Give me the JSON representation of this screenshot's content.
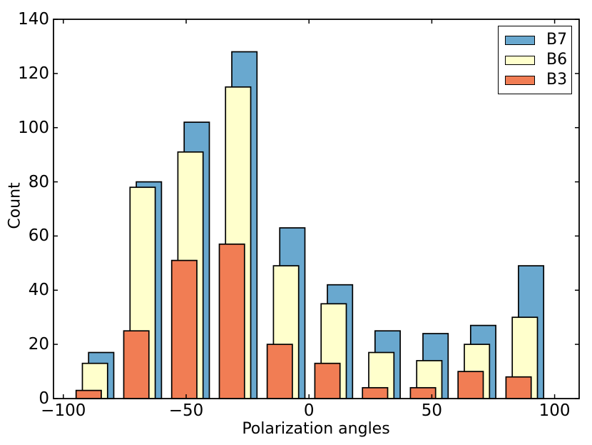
{
  "chart_data": {
    "type": "bar",
    "subtype": "overlapping-histogram",
    "title": "",
    "xlabel": "Polarization angles",
    "ylabel": "Count",
    "xlim": [
      -104,
      110
    ],
    "ylim": [
      0,
      140
    ],
    "grid": false,
    "legend_position": "upper right",
    "x_ticks": [
      -100,
      -50,
      0,
      50,
      100
    ],
    "x_tick_labels": [
      "−100",
      "−50",
      "0",
      "50",
      "100"
    ],
    "y_ticks": [
      0,
      20,
      40,
      60,
      80,
      100,
      120,
      140
    ],
    "y_tick_labels": [
      "0",
      "20",
      "40",
      "60",
      "80",
      "100",
      "120",
      "140"
    ],
    "bin_left_edges": [
      -94.8,
      -75.4,
      -55.9,
      -36.5,
      -17.0,
      2.4,
      21.8,
      41.3,
      60.7,
      80.2
    ],
    "bin_centers": [
      -89.6,
      -70.2,
      -50.7,
      -31.3,
      -11.8,
      7.6,
      27.1,
      46.5,
      66.0,
      85.4
    ],
    "bar_width": 10.25,
    "edge_color": "#000000",
    "series": [
      {
        "name": "B7",
        "color": "#69a8cf",
        "offset": 5.1,
        "values": [
          17,
          80,
          102,
          128,
          63,
          42,
          25,
          24,
          27,
          49
        ]
      },
      {
        "name": "B6",
        "color": "#ffffcc",
        "offset": 2.55,
        "values": [
          13,
          78,
          91,
          115,
          49,
          35,
          17,
          14,
          20,
          30
        ]
      },
      {
        "name": "B3",
        "color": "#f17d54",
        "offset": 0,
        "values": [
          3,
          25,
          51,
          57,
          20,
          13,
          4,
          4,
          10,
          8
        ]
      }
    ]
  }
}
